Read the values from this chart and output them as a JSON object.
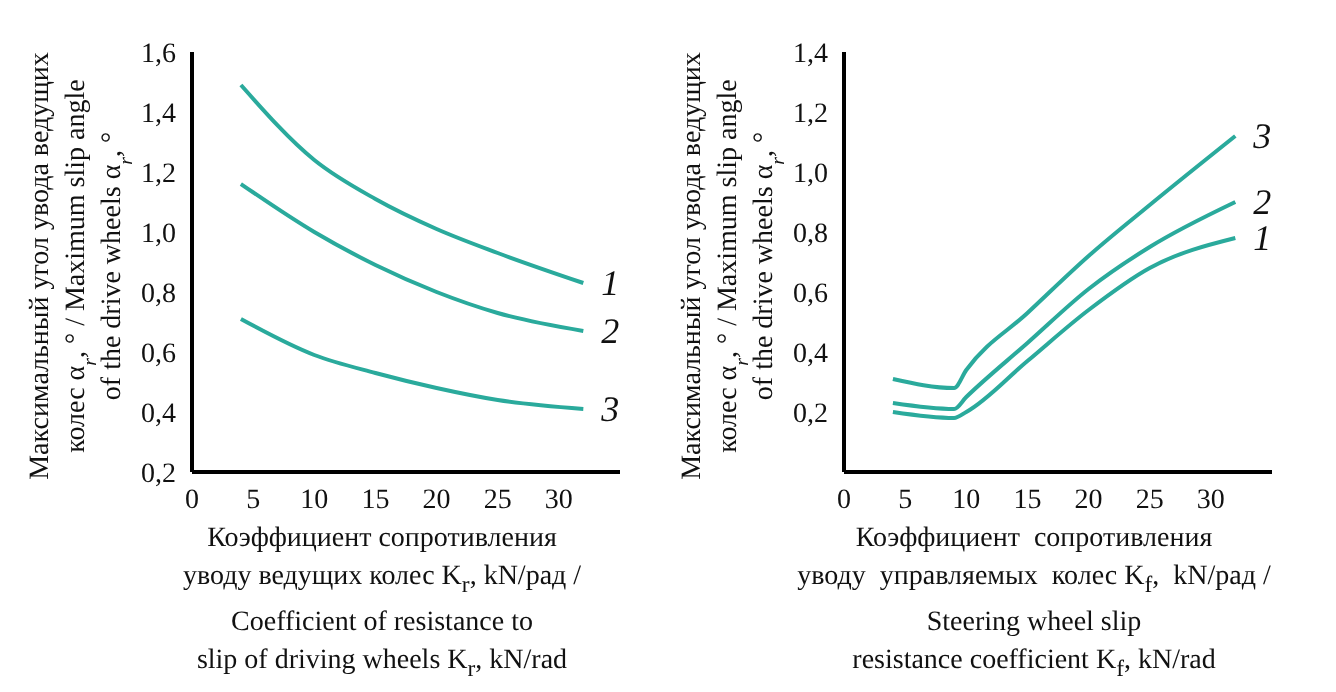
{
  "chart_data": [
    {
      "type": "line",
      "ylabel": "Максимальный угол увода ведущих\nколес α$_{r}$, ° / Maximum slip angle\nof the drive wheels α$_{r}$, °",
      "xlabel": "Коэффициент сопротивления\nуводу ведущих колес K$_{r}$, kN/рад /\nCoefficient of resistance to\nslip of driving wheels K$_{r}$, kN/rad",
      "x": [
        4,
        10,
        15,
        20,
        25,
        32
      ],
      "series": [
        {
          "name": "1",
          "color": "#2aaa9c",
          "values": [
            1.49,
            1.24,
            1.11,
            1.01,
            0.93,
            0.83
          ]
        },
        {
          "name": "2",
          "color": "#2aaa9c",
          "values": [
            1.16,
            1.0,
            0.89,
            0.8,
            0.73,
            0.67
          ]
        },
        {
          "name": "3",
          "color": "#2aaa9c",
          "values": [
            0.71,
            0.59,
            0.53,
            0.48,
            0.44,
            0.41
          ]
        }
      ],
      "xlim": [
        0,
        35
      ],
      "xticks": [
        0,
        5,
        10,
        15,
        20,
        25,
        30
      ],
      "ylim": [
        0.2,
        1.6
      ],
      "yticks": [
        {
          "value": 0.2,
          "label": "0,2"
        },
        {
          "value": 0.4,
          "label": "0,4"
        },
        {
          "value": 0.6,
          "label": "0,6"
        },
        {
          "value": 0.8,
          "label": "0,8"
        },
        {
          "value": 1.0,
          "label": "1,0"
        },
        {
          "value": 1.2,
          "label": "1,2"
        },
        {
          "value": 1.4,
          "label": "1,4"
        },
        {
          "value": 1.6,
          "label": "1,6"
        }
      ],
      "grid": false,
      "legend": false,
      "marker": "none",
      "line_style": "solid"
    },
    {
      "type": "line",
      "ylabel": "Максимальный угол увода ведущих\nколес α$_{r}$, ° / Maximum slip angle\nof the drive wheels α$_{r}$, °",
      "xlabel": "Коэффициент  сопротивления\nуводу  управляемых  колес K$_{f}$,  kN/рад /\nSteering wheel slip\nresistance coefficient K$_{f}$, kN/rad",
      "x": [
        4,
        9,
        10,
        15,
        20,
        25,
        32
      ],
      "series": [
        {
          "name": "1",
          "color": "#2aaa9c",
          "values": [
            0.2,
            0.18,
            0.2,
            0.37,
            0.54,
            0.68,
            0.78
          ]
        },
        {
          "name": "2",
          "color": "#2aaa9c",
          "values": [
            0.23,
            0.21,
            0.25,
            0.43,
            0.61,
            0.75,
            0.9
          ]
        },
        {
          "name": "3",
          "color": "#2aaa9c",
          "values": [
            0.31,
            0.28,
            0.34,
            0.53,
            0.72,
            0.89,
            1.12
          ]
        }
      ],
      "xlim": [
        0,
        35
      ],
      "xticks": [
        0,
        5,
        10,
        15,
        20,
        25,
        30
      ],
      "ylim": [
        0,
        1.4
      ],
      "yticks": [
        {
          "value": 0.2,
          "label": "0,2"
        },
        {
          "value": 0.4,
          "label": "0,4"
        },
        {
          "value": 0.6,
          "label": "0,6"
        },
        {
          "value": 0.8,
          "label": "0,8"
        },
        {
          "value": 1.0,
          "label": "1,0"
        },
        {
          "value": 1.2,
          "label": "1,2"
        },
        {
          "value": 1.4,
          "label": "1,4"
        }
      ],
      "grid": false,
      "legend": false,
      "marker": "none",
      "line_style": "solid"
    }
  ]
}
